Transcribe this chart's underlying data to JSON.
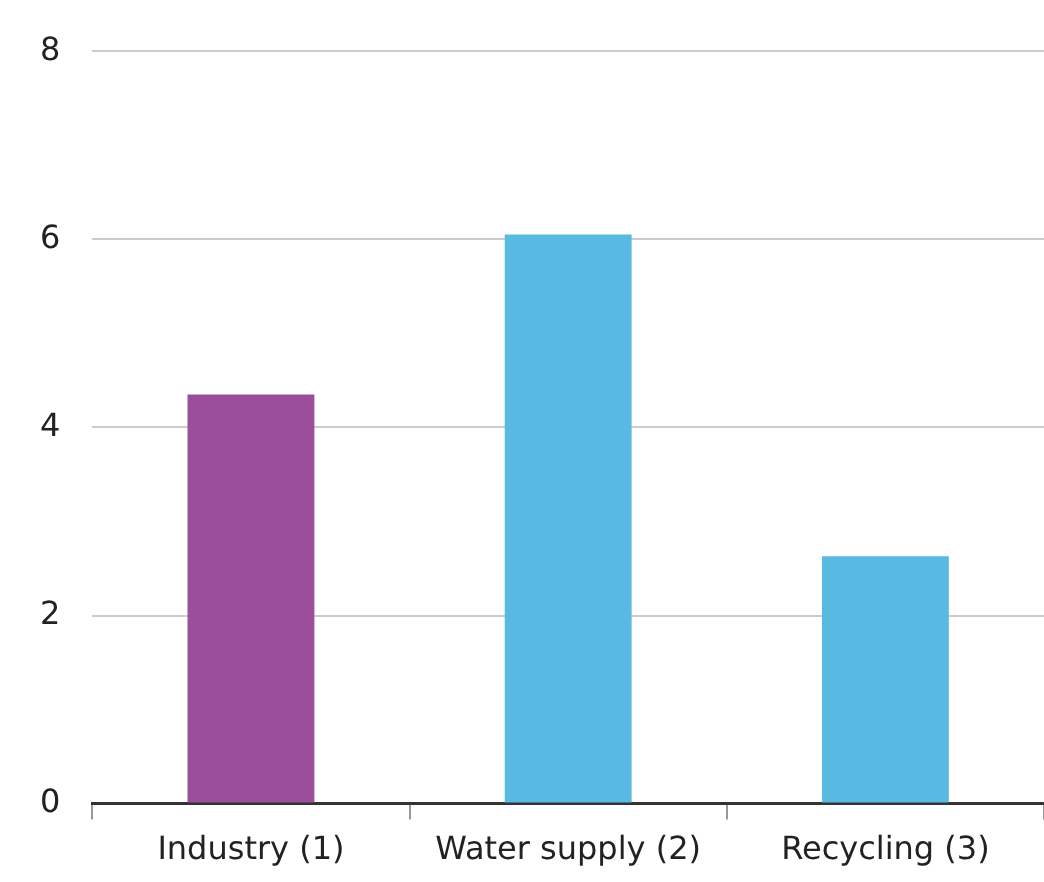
{
  "chart_data": {
    "type": "bar",
    "categories": [
      "Industry (1)",
      "Water supply (2)",
      "Recycling (3)"
    ],
    "values": [
      4.35,
      6.05,
      2.63
    ],
    "colors": [
      "#9b4f9b",
      "#58b9e2",
      "#58b9e2"
    ],
    "ylim": [
      0,
      8
    ],
    "yticks": [
      0,
      2,
      4,
      6,
      8
    ],
    "grid": "y"
  }
}
